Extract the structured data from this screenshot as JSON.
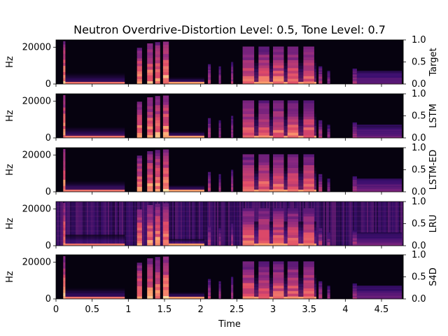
{
  "chart_data": {
    "type": "heatmap",
    "title": "Neutron Overdrive-Distortion Level: 0.5, Tone Level: 0.7",
    "xlabel": "Time",
    "xlim": [
      0,
      4.8
    ],
    "x_ticks": [
      0,
      0.5,
      1,
      1.5,
      2,
      2.5,
      3,
      3.5,
      4,
      4.5
    ],
    "x_tick_labels": [
      "0",
      "0.5",
      "1",
      "1.5",
      "2",
      "2.5",
      "3",
      "3.5",
      "4",
      "4.5"
    ],
    "ylabel": "Hz",
    "ylim": [
      0,
      24000
    ],
    "y_ticks": [
      0,
      20000
    ],
    "y_tick_labels": [
      "0",
      "20000"
    ],
    "colorbar": {
      "range": [
        0,
        1
      ],
      "ticks": [
        0,
        0.5,
        1
      ],
      "tick_labels": [
        "0.0",
        "0.5",
        "1.0"
      ]
    },
    "colormap": [
      "#000004",
      "#3b0f70",
      "#8c2981",
      "#de4968",
      "#fe9f6d",
      "#fcfdbf"
    ],
    "panels": [
      {
        "label": "Target",
        "noise": false
      },
      {
        "label": "LSTM",
        "noise": false
      },
      {
        "label": "LSTM-ED",
        "noise": false
      },
      {
        "label": "LRU",
        "noise": true
      },
      {
        "label": "S4D",
        "noise": false
      }
    ],
    "events": [
      {
        "t": 0.1,
        "d": 0.03,
        "topFrac": 0.97,
        "amp": 0.95
      },
      {
        "t": 1.12,
        "d": 0.07,
        "topFrac": 0.82,
        "amp": 0.9
      },
      {
        "t": 1.26,
        "d": 0.08,
        "topFrac": 0.92,
        "amp": 0.9
      },
      {
        "t": 1.37,
        "d": 0.07,
        "topFrac": 0.95,
        "amp": 0.9
      },
      {
        "t": 1.48,
        "d": 0.08,
        "topFrac": 0.96,
        "amp": 0.95
      },
      {
        "t": 2.1,
        "d": 0.04,
        "topFrac": 0.45,
        "amp": 0.6
      },
      {
        "t": 2.25,
        "d": 0.03,
        "topFrac": 0.4,
        "amp": 0.55
      },
      {
        "t": 2.42,
        "d": 0.03,
        "topFrac": 0.5,
        "amp": 0.55
      },
      {
        "t": 2.58,
        "d": 0.16,
        "topFrac": 0.85,
        "amp": 0.8
      },
      {
        "t": 2.8,
        "d": 0.15,
        "topFrac": 0.85,
        "amp": 0.8
      },
      {
        "t": 3.0,
        "d": 0.15,
        "topFrac": 0.85,
        "amp": 0.8
      },
      {
        "t": 3.2,
        "d": 0.15,
        "topFrac": 0.85,
        "amp": 0.8
      },
      {
        "t": 3.42,
        "d": 0.15,
        "topFrac": 0.85,
        "amp": 0.8
      },
      {
        "t": 3.63,
        "d": 0.05,
        "topFrac": 0.4,
        "amp": 0.6
      },
      {
        "t": 3.75,
        "d": 0.04,
        "topFrac": 0.3,
        "amp": 0.5
      },
      {
        "t": 4.1,
        "d": 0.06,
        "topFrac": 0.35,
        "amp": 0.55
      },
      {
        "t": 4.16,
        "d": 0.62,
        "topFrac": 0.3,
        "amp": 0.4
      }
    ],
    "sustains": [
      {
        "t0": 0.12,
        "t1": 0.95,
        "topFrac": 0.25,
        "amp": 0.35
      },
      {
        "t0": 1.55,
        "t1": 2.05,
        "topFrac": 0.15,
        "amp": 0.45
      },
      {
        "t0": 2.6,
        "t1": 3.6,
        "topFrac": 0.55,
        "amp": 0.45
      },
      {
        "t0": 4.16,
        "t1": 4.78,
        "topFrac": 0.25,
        "amp": 0.45
      }
    ]
  }
}
